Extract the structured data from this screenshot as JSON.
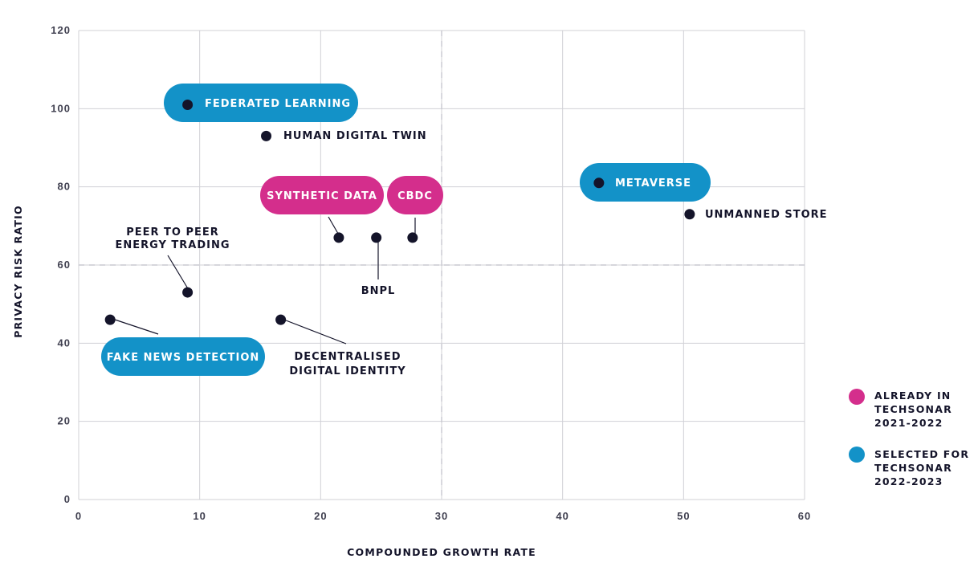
{
  "chart_data": {
    "type": "scatter",
    "title": "",
    "xlabel": "COMPOUNDED GROWTH RATE",
    "ylabel": "PRIVACY RISK RATIO",
    "xlim": [
      0,
      60
    ],
    "ylim": [
      0,
      120
    ],
    "x_ticks": [
      "0",
      "10",
      "20",
      "30",
      "40",
      "50",
      "60"
    ],
    "y_ticks": [
      "0",
      "20",
      "40",
      "60",
      "80",
      "100",
      "120"
    ],
    "grid": true,
    "reference_lines": {
      "x": 30,
      "y": 60
    },
    "points": [
      {
        "label": "FEDERATED LEARNING",
        "x": 9,
        "y": 101,
        "category": "selected"
      },
      {
        "label": "HUMAN DIGITAL TWIN",
        "x": 15.5,
        "y": 93,
        "category": "none"
      },
      {
        "label": "SYNTHETIC DATA",
        "x": 21.5,
        "y": 67,
        "category": "already"
      },
      {
        "label": "BNPL",
        "x": 24.6,
        "y": 67,
        "category": "none"
      },
      {
        "label": "CBDC",
        "x": 27.6,
        "y": 67,
        "category": "already"
      },
      {
        "label": "METAVERSE",
        "x": 43,
        "y": 81,
        "category": "selected"
      },
      {
        "label": "UNMANNED STORE",
        "x": 50.5,
        "y": 73,
        "category": "none"
      },
      {
        "label": "PEER TO PEER ENERGY TRADING",
        "x": 9,
        "y": 53,
        "category": "none"
      },
      {
        "label": "FAKE NEWS DETECTION",
        "x": 2.6,
        "y": 46,
        "category": "selected"
      },
      {
        "label": "DECENTRALISED DIGITAL IDENTITY",
        "x": 16.7,
        "y": 46,
        "category": "none"
      }
    ],
    "legend": [
      {
        "key": "already",
        "label_lines": [
          "ALREADY IN",
          "TECHSONAR",
          "2021-2022"
        ],
        "color": "#D42E8C"
      },
      {
        "key": "selected",
        "label_lines": [
          "SELECTED FOR",
          "TECHSONAR",
          "2022-2023"
        ],
        "color": "#1392C8"
      }
    ],
    "legend_position": "bottom-right"
  },
  "colors": {
    "dot": "#14142a",
    "grid": "#d0d0d6",
    "dashed": "#c8c8d0",
    "pink": "#D42E8C",
    "blue": "#1392C8"
  }
}
